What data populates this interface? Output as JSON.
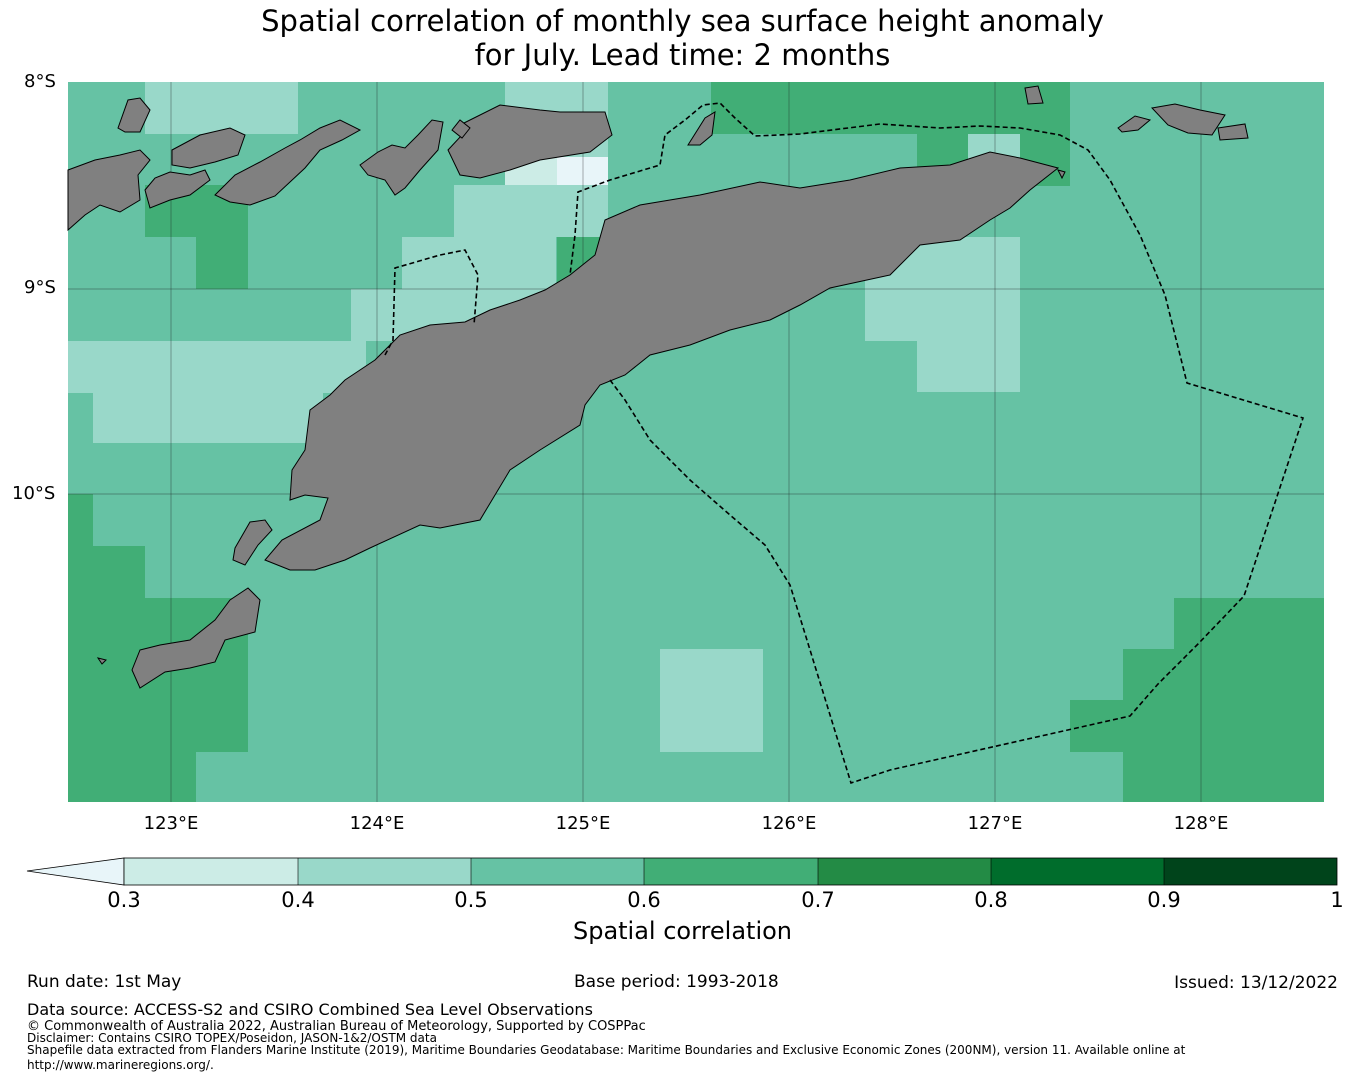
{
  "title_line1": "Spatial correlation of monthly sea surface height anomaly",
  "title_line2": "for July. Lead time: 2 months",
  "lat_labels": [
    "8°S",
    "9°S",
    "10°S"
  ],
  "lon_labels": [
    "123°E",
    "124°E",
    "125°E",
    "126°E",
    "127°E",
    "128°E"
  ],
  "colorbar": {
    "label": "Spatial correlation",
    "ticks": [
      "0.3",
      "0.4",
      "0.5",
      "0.6",
      "0.7",
      "0.8",
      "0.9",
      "1"
    ],
    "colors": [
      "#e8f5f9",
      "#ccece6",
      "#99d8c9",
      "#66c2a4",
      "#41ae76",
      "#238b45",
      "#006d2c",
      "#00441b"
    ],
    "land_color": "#808080"
  },
  "run_date": "Run date: 1st May",
  "base_period": "Base period: 1993-2018",
  "issued": "Issued: 13/12/2022",
  "data_source": "Data source: ACCESS-S2 and CSIRO Combined Sea Level Observations",
  "copyright": "© Commonwealth of Australia 2022, Australian Bureau of Meteorology, Supported by COSPPac",
  "disclaimer": "Disclaimer: Contains CSIRO TOPEX/Poseidon, JASON-1&2/OSTM data",
  "shapefile_line1": "Shapefile data extracted from Flanders Marine Institute (2019), Maritime Boundaries Geodatabase: Maritime Boundaries and Exclusive Economic Zones (200NM), version 11. Available online at",
  "shapefile_line2": "http://www.marineregions.org/."
}
